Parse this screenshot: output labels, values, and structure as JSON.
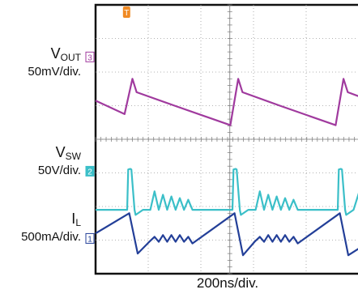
{
  "channels": [
    {
      "id": "vout",
      "name": "V",
      "sub": "OUT",
      "scale": "50mV/div.",
      "marker": "3",
      "color": "#a03a9e"
    },
    {
      "id": "vsw",
      "name": "V",
      "sub": "SW",
      "scale": "50V/div.",
      "marker": "2",
      "color": "#3bbfc8"
    },
    {
      "id": "il",
      "name": "I",
      "sub": "L",
      "scale": "500mA/div.",
      "marker": "1",
      "color": "#233f98"
    }
  ],
  "trigger_marker": "T",
  "trigger_color": "#f08a24",
  "timebase": "200ns/div.",
  "chart_data": {
    "type": "line",
    "title": "",
    "xlabel": "200ns/div.",
    "ylabel": "",
    "grid": true,
    "xlim_divisions": [
      0,
      5
    ],
    "series": [
      {
        "name": "VOUT",
        "scale": "50mV/div.",
        "x_div": [
          0.0,
          0.55,
          0.7,
          0.78,
          1.5,
          2.56,
          2.71,
          2.79,
          3.5,
          4.56,
          4.71,
          4.79,
          5.0
        ],
        "y_div": [
          5.15,
          4.75,
          5.8,
          5.4,
          5.0,
          4.42,
          5.8,
          5.4,
          5.0,
          4.42,
          5.8,
          5.4,
          5.28
        ]
      },
      {
        "name": "VSW",
        "scale": "50V/div.",
        "x_div": [
          0.0,
          0.6,
          0.62,
          0.66,
          0.68,
          0.74,
          0.76,
          0.9,
          1.04,
          1.12,
          1.2,
          1.28,
          1.36,
          1.44,
          1.52,
          1.6,
          1.68,
          1.76,
          1.84,
          2.6,
          2.62,
          2.66,
          2.68,
          2.74,
          2.76,
          2.9,
          3.04,
          3.12,
          3.2,
          3.28,
          3.36,
          3.44,
          3.52,
          3.6,
          3.68,
          3.76,
          3.84,
          4.6,
          4.62,
          4.66,
          4.68,
          4.74,
          4.76,
          4.9,
          5.0
        ],
        "y_div": [
          1.9,
          1.9,
          3.1,
          3.12,
          3.1,
          1.9,
          1.75,
          1.9,
          1.9,
          2.45,
          1.9,
          2.35,
          1.9,
          2.3,
          1.9,
          2.25,
          1.9,
          2.2,
          1.9,
          1.9,
          3.1,
          3.12,
          3.1,
          1.9,
          1.75,
          1.9,
          1.9,
          2.45,
          1.9,
          2.35,
          1.9,
          2.3,
          1.9,
          2.25,
          1.9,
          2.2,
          1.9,
          1.9,
          3.1,
          3.12,
          3.1,
          1.9,
          1.75,
          1.9,
          2.4
        ]
      },
      {
        "name": "IL",
        "scale": "500mA/div.",
        "x_div": [
          0.0,
          0.64,
          0.8,
          1.02,
          1.12,
          1.2,
          1.28,
          1.36,
          1.44,
          1.52,
          1.6,
          1.68,
          1.76,
          1.84,
          2.64,
          2.8,
          3.02,
          3.12,
          3.2,
          3.28,
          3.36,
          3.44,
          3.52,
          3.6,
          3.68,
          3.76,
          3.84,
          4.64,
          4.8,
          5.0
        ],
        "y_div": [
          1.2,
          1.8,
          0.6,
          0.95,
          1.1,
          0.95,
          1.15,
          0.95,
          1.15,
          0.95,
          1.15,
          0.95,
          1.1,
          0.9,
          1.8,
          0.55,
          0.95,
          1.1,
          0.95,
          1.15,
          0.95,
          1.15,
          0.95,
          1.15,
          0.95,
          1.1,
          0.9,
          1.8,
          0.55,
          0.75
        ]
      }
    ]
  }
}
